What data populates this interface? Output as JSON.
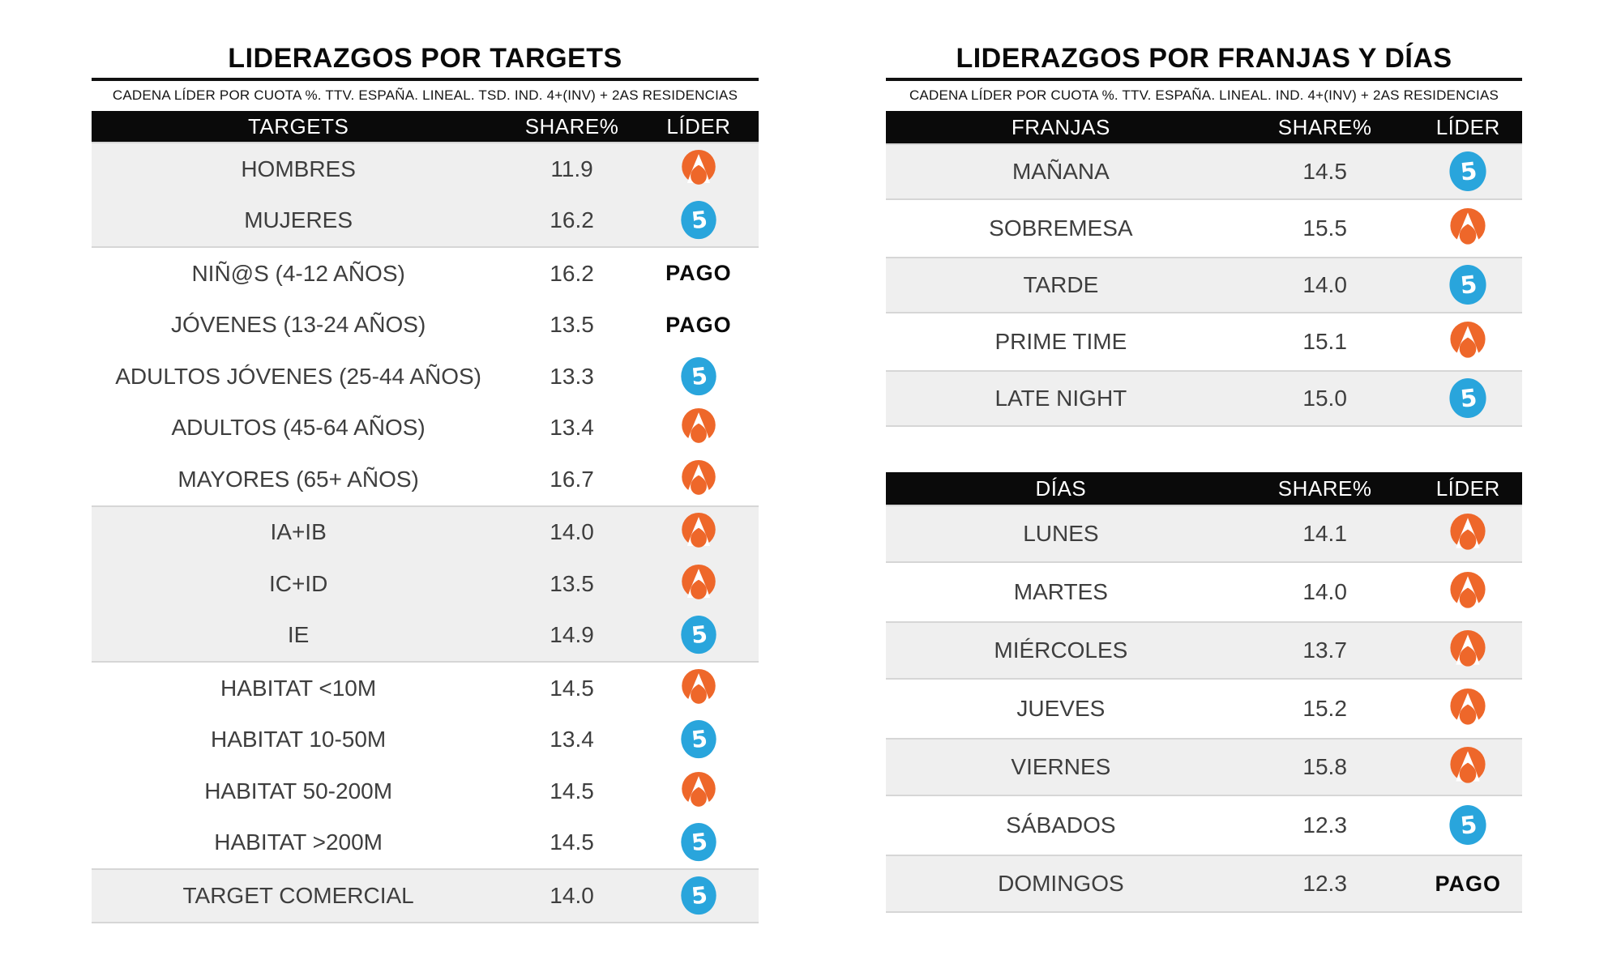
{
  "colors": {
    "antena3_orange": "#EE672A",
    "telecinco_blue": "#29A5DC",
    "header_bg": "#0A0A0A",
    "row_shaded": "#EFEFEF",
    "row_border": "#D6D6D6"
  },
  "ui": {
    "left": {
      "title": "LIDERAZGOS POR TARGETS",
      "subtitle": "CADENA LÍDER POR CUOTA %. TTV. ESPAÑA. LINEAL. TSD. IND. 4+(INV) + 2AS RESIDENCIAS",
      "col_label": "TARGETS",
      "col_share": "SHARE%",
      "col_leader": "LÍDER",
      "groups": [
        {
          "shaded": true,
          "rows": [
            {
              "label": "HOMBRES",
              "share": "11.9",
              "leader": "antena3"
            },
            {
              "label": "MUJERES",
              "share": "16.2",
              "leader": "telecinco"
            }
          ]
        },
        {
          "shaded": false,
          "rows": [
            {
              "label": "NIÑ@S (4-12 AÑOS)",
              "share": "16.2",
              "leader": "pago"
            },
            {
              "label": "JÓVENES (13-24 AÑOS)",
              "share": "13.5",
              "leader": "pago"
            },
            {
              "label": "ADULTOS JÓVENES (25-44 AÑOS)",
              "share": "13.3",
              "leader": "telecinco"
            },
            {
              "label": "ADULTOS (45-64 AÑOS)",
              "share": "13.4",
              "leader": "antena3"
            },
            {
              "label": "MAYORES (65+ AÑOS)",
              "share": "16.7",
              "leader": "antena3"
            }
          ]
        },
        {
          "shaded": true,
          "rows": [
            {
              "label": "IA+IB",
              "share": "14.0",
              "leader": "antena3"
            },
            {
              "label": "IC+ID",
              "share": "13.5",
              "leader": "antena3"
            },
            {
              "label": "IE",
              "share": "14.9",
              "leader": "telecinco"
            }
          ]
        },
        {
          "shaded": false,
          "rows": [
            {
              "label": "HABITAT <10M",
              "share": "14.5",
              "leader": "antena3"
            },
            {
              "label": "HABITAT 10-50M",
              "share": "13.4",
              "leader": "telecinco"
            },
            {
              "label": "HABITAT 50-200M",
              "share": "14.5",
              "leader": "antena3"
            },
            {
              "label": "HABITAT >200M",
              "share": "14.5",
              "leader": "telecinco"
            }
          ]
        },
        {
          "shaded": true,
          "rows": [
            {
              "label": "TARGET COMERCIAL",
              "share": "14.0",
              "leader": "telecinco"
            }
          ]
        }
      ]
    },
    "right": {
      "title": "LIDERAZGOS POR FRANJAS Y DÍAS",
      "subtitle": "CADENA LÍDER POR CUOTA %. TTV. ESPAÑA. LINEAL. IND. 4+(INV) + 2AS RESIDENCIAS",
      "franjas": {
        "col_label": "FRANJAS",
        "col_share": "SHARE%",
        "col_leader": "LÍDER",
        "rows": [
          {
            "label": "MAÑANA",
            "share": "14.5",
            "leader": "telecinco"
          },
          {
            "label": "SOBREMESA",
            "share": "15.5",
            "leader": "antena3"
          },
          {
            "label": "TARDE",
            "share": "14.0",
            "leader": "telecinco"
          },
          {
            "label": "PRIME TIME",
            "share": "15.1",
            "leader": "antena3"
          },
          {
            "label": "LATE NIGHT",
            "share": "15.0",
            "leader": "telecinco"
          }
        ]
      },
      "dias": {
        "col_label": "DÍAS",
        "col_share": "SHARE%",
        "col_leader": "LÍDER",
        "rows": [
          {
            "label": "LUNES",
            "share": "14.1",
            "leader": "antena3"
          },
          {
            "label": "MARTES",
            "share": "14.0",
            "leader": "antena3"
          },
          {
            "label": "MIÉRCOLES",
            "share": "13.7",
            "leader": "antena3"
          },
          {
            "label": "JUEVES",
            "share": "15.2",
            "leader": "antena3"
          },
          {
            "label": "VIERNES",
            "share": "15.8",
            "leader": "antena3"
          },
          {
            "label": "SÁBADOS",
            "share": "12.3",
            "leader": "telecinco"
          },
          {
            "label": "DOMINGOS",
            "share": "12.3",
            "leader": "pago"
          }
        ]
      }
    }
  },
  "leader_names": {
    "antena3": "ANTENA 3",
    "telecinco": "TELECINCO",
    "pago": "PAGO"
  },
  "chart_data": [
    {
      "type": "table",
      "title": "LIDERAZGOS POR TARGETS",
      "subtitle": "CADENA LÍDER POR CUOTA %. TTV. ESPAÑA. LINEAL. TSD. IND. 4+(INV) + 2AS RESIDENCIAS",
      "columns": [
        "TARGETS",
        "SHARE%",
        "LÍDER"
      ],
      "rows": [
        [
          "HOMBRES",
          11.9,
          "ANTENA 3"
        ],
        [
          "MUJERES",
          16.2,
          "TELECINCO"
        ],
        [
          "NIÑ@S (4-12 AÑOS)",
          16.2,
          "PAGO"
        ],
        [
          "JÓVENES (13-24 AÑOS)",
          13.5,
          "PAGO"
        ],
        [
          "ADULTOS JÓVENES (25-44 AÑOS)",
          13.3,
          "TELECINCO"
        ],
        [
          "ADULTOS (45-64 AÑOS)",
          13.4,
          "ANTENA 3"
        ],
        [
          "MAYORES (65+ AÑOS)",
          16.7,
          "ANTENA 3"
        ],
        [
          "IA+IB",
          14.0,
          "ANTENA 3"
        ],
        [
          "IC+ID",
          13.5,
          "ANTENA 3"
        ],
        [
          "IE",
          14.9,
          "TELECINCO"
        ],
        [
          "HABITAT <10M",
          14.5,
          "ANTENA 3"
        ],
        [
          "HABITAT 10-50M",
          13.4,
          "TELECINCO"
        ],
        [
          "HABITAT 50-200M",
          14.5,
          "ANTENA 3"
        ],
        [
          "HABITAT >200M",
          14.5,
          "TELECINCO"
        ],
        [
          "TARGET COMERCIAL",
          14.0,
          "TELECINCO"
        ]
      ]
    },
    {
      "type": "table",
      "title": "LIDERAZGOS POR FRANJAS Y DÍAS",
      "subtitle": "CADENA LÍDER POR CUOTA %. TTV. ESPAÑA. LINEAL. IND. 4+(INV) + 2AS RESIDENCIAS",
      "sections": [
        {
          "name": "FRANJAS",
          "columns": [
            "FRANJAS",
            "SHARE%",
            "LÍDER"
          ],
          "rows": [
            [
              "MAÑANA",
              14.5,
              "TELECINCO"
            ],
            [
              "SOBREMESA",
              15.5,
              "ANTENA 3"
            ],
            [
              "TARDE",
              14.0,
              "TELECINCO"
            ],
            [
              "PRIME TIME",
              15.1,
              "ANTENA 3"
            ],
            [
              "LATE NIGHT",
              15.0,
              "TELECINCO"
            ]
          ]
        },
        {
          "name": "DÍAS",
          "columns": [
            "DÍAS",
            "SHARE%",
            "LÍDER"
          ],
          "rows": [
            [
              "LUNES",
              14.1,
              "ANTENA 3"
            ],
            [
              "MARTES",
              14.0,
              "ANTENA 3"
            ],
            [
              "MIÉRCOLES",
              13.7,
              "ANTENA 3"
            ],
            [
              "JUEVES",
              15.2,
              "ANTENA 3"
            ],
            [
              "VIERNES",
              15.8,
              "ANTENA 3"
            ],
            [
              "SÁBADOS",
              12.3,
              "TELECINCO"
            ],
            [
              "DOMINGOS",
              12.3,
              "PAGO"
            ]
          ]
        }
      ]
    }
  ]
}
